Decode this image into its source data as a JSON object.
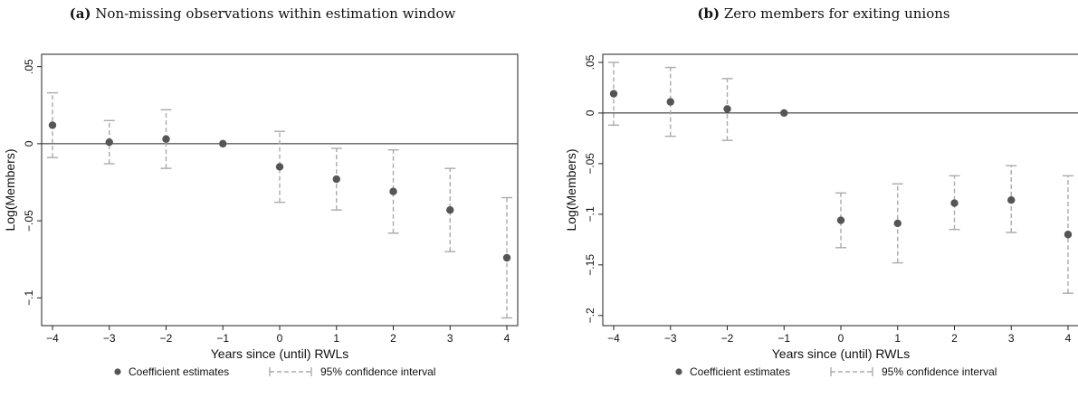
{
  "chart_data": [
    {
      "type": "scatter",
      "panel_tag": "(a)",
      "title": "Non-missing observations within estimation window",
      "xlabel": "Years since (until) RWLs",
      "ylabel": "Log(Members)",
      "xlim": [
        -4,
        4
      ],
      "ylim": [
        -0.118,
        0.058
      ],
      "x_ticks": [
        -4,
        -3,
        -2,
        -1,
        0,
        1,
        2,
        3,
        4
      ],
      "x_tick_labels": [
        "−4",
        "−3",
        "−2",
        "−1",
        "0",
        "1",
        "2",
        "3",
        "4"
      ],
      "y_ticks": [
        0.05,
        0,
        -0.05,
        -0.1
      ],
      "y_tick_labels": [
        ".05",
        "0",
        "−.05",
        "−.1"
      ],
      "reference_line_y": 0,
      "grid": false,
      "legend_position": "bottom",
      "series": [
        {
          "name": "Coefficient estimates",
          "x": [
            -4,
            -3,
            -2,
            -1,
            0,
            1,
            2,
            3,
            4
          ],
          "y": [
            0.012,
            0.001,
            0.003,
            0.0,
            -0.015,
            -0.023,
            -0.031,
            -0.043,
            -0.074
          ]
        },
        {
          "name": "95% confidence interval",
          "x": [
            -4,
            -3,
            -2,
            0,
            1,
            2,
            3,
            4
          ],
          "lower": [
            -0.009,
            -0.013,
            -0.016,
            -0.038,
            -0.043,
            -0.058,
            -0.07,
            -0.113
          ],
          "upper": [
            0.033,
            0.015,
            0.022,
            0.008,
            -0.003,
            -0.004,
            -0.016,
            -0.035
          ]
        }
      ],
      "colors": {
        "point": "#555555",
        "interval": "#aaaaaa",
        "axis": "#222222"
      }
    },
    {
      "type": "scatter",
      "panel_tag": "(b)",
      "title": "Zero members for exiting unions",
      "xlabel": "Years since (until) RWLs",
      "ylabel": "Log(Members)",
      "xlim": [
        -4,
        4
      ],
      "ylim": [
        -0.21,
        0.058
      ],
      "x_ticks": [
        -4,
        -3,
        -2,
        -1,
        0,
        1,
        2,
        3,
        4
      ],
      "x_tick_labels": [
        "−4",
        "−3",
        "−2",
        "−1",
        "0",
        "1",
        "2",
        "3",
        "4"
      ],
      "y_ticks": [
        0.05,
        0,
        -0.05,
        -0.1,
        -0.15,
        -0.2
      ],
      "y_tick_labels": [
        ".05",
        "0",
        "−.05",
        "−.1",
        "−.15",
        "−.2"
      ],
      "reference_line_y": 0,
      "grid": false,
      "legend_position": "bottom",
      "series": [
        {
          "name": "Coefficient estimates",
          "x": [
            -4,
            -3,
            -2,
            -1,
            0,
            1,
            2,
            3,
            4
          ],
          "y": [
            0.019,
            0.011,
            0.004,
            0.0,
            -0.106,
            -0.109,
            -0.089,
            -0.086,
            -0.12
          ]
        },
        {
          "name": "95% confidence interval",
          "x": [
            -4,
            -3,
            -2,
            0,
            1,
            2,
            3,
            4
          ],
          "lower": [
            -0.012,
            -0.023,
            -0.027,
            -0.133,
            -0.148,
            -0.115,
            -0.118,
            -0.178
          ],
          "upper": [
            0.05,
            0.045,
            0.034,
            -0.079,
            -0.07,
            -0.062,
            -0.052,
            -0.062
          ]
        }
      ],
      "colors": {
        "point": "#555555",
        "interval": "#aaaaaa",
        "axis": "#222222"
      }
    }
  ]
}
